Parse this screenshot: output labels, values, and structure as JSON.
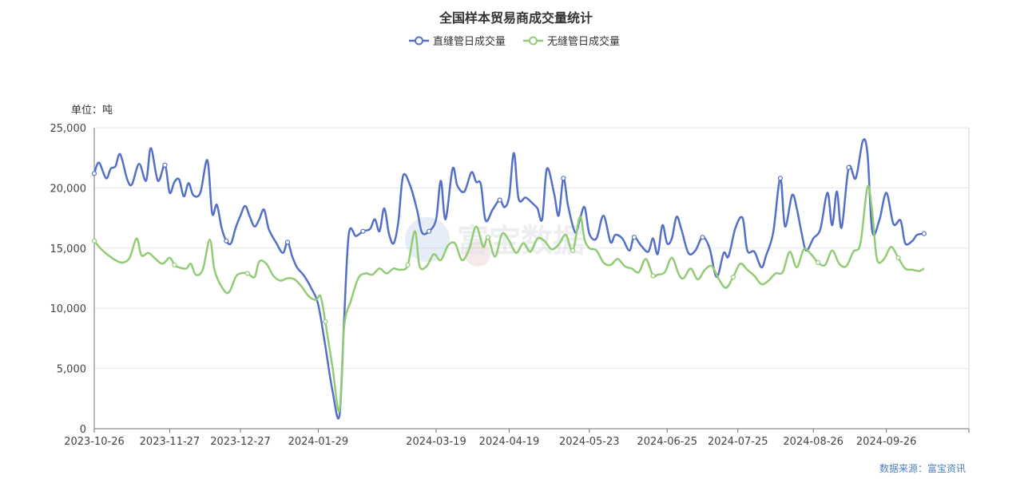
{
  "chart_data": {
    "type": "line",
    "title": "全国样本贸易商成交量统计",
    "unit_label": "单位：吨",
    "source": "数据来源：富宝资讯",
    "watermark": "富宝数据",
    "ylim": [
      0,
      25000
    ],
    "yticks": [
      0,
      5000,
      10000,
      15000,
      20000,
      25000
    ],
    "ytick_labels": [
      "0",
      "5,000",
      "10,000",
      "15,000",
      "20,000",
      "25,000"
    ],
    "xlim": [
      "2023-10-26",
      "2024-10-31"
    ],
    "xtick_labels": [
      "2023-10-26",
      "2023-11-27",
      "2023-12-27",
      "2024-01-29",
      "2024-03-19",
      "2024-04-19",
      "2024-05-23",
      "2024-06-25",
      "2024-07-25",
      "2024-08-26",
      "2024-09-26"
    ],
    "grid": true,
    "legend_position": "top-center",
    "series": [
      {
        "name": "直缝管日成交量",
        "color": "#5470c6",
        "points": [
          [
            "2023-10-26",
            21200
          ],
          [
            "2023-10-28",
            22100
          ],
          [
            "2023-10-31",
            20800
          ],
          [
            "2023-11-02",
            21600
          ],
          [
            "2023-11-04",
            21800
          ],
          [
            "2023-11-06",
            22800
          ],
          [
            "2023-11-09",
            20700
          ],
          [
            "2023-11-11",
            20300
          ],
          [
            "2023-11-14",
            22000
          ],
          [
            "2023-11-17",
            20600
          ],
          [
            "2023-11-19",
            23300
          ],
          [
            "2023-11-22",
            20600
          ],
          [
            "2023-11-25",
            21900
          ],
          [
            "2023-11-27",
            19600
          ],
          [
            "2023-11-29",
            20500
          ],
          [
            "2023-12-01",
            20700
          ],
          [
            "2023-12-03",
            19300
          ],
          [
            "2023-12-05",
            20400
          ],
          [
            "2023-12-07",
            19400
          ],
          [
            "2023-12-10",
            19600
          ],
          [
            "2023-12-13",
            22300
          ],
          [
            "2023-12-15",
            17900
          ],
          [
            "2023-12-17",
            18600
          ],
          [
            "2023-12-19",
            16700
          ],
          [
            "2023-12-21",
            15600
          ],
          [
            "2023-12-23",
            15400
          ],
          [
            "2023-12-25",
            16700
          ],
          [
            "2023-12-27",
            17700
          ],
          [
            "2023-12-29",
            18500
          ],
          [
            "2023-12-31",
            17600
          ],
          [
            "2024-01-02",
            16800
          ],
          [
            "2024-01-04",
            17400
          ],
          [
            "2024-01-06",
            18200
          ],
          [
            "2024-01-08",
            16600
          ],
          [
            "2024-01-11",
            15500
          ],
          [
            "2024-01-14",
            14600
          ],
          [
            "2024-01-16",
            15500
          ],
          [
            "2024-01-18",
            14300
          ],
          [
            "2024-01-20",
            13400
          ],
          [
            "2024-01-23",
            12700
          ],
          [
            "2024-01-26",
            11700
          ],
          [
            "2024-01-29",
            10300
          ],
          [
            "2024-02-01",
            6900
          ],
          [
            "2024-02-04",
            3200
          ],
          [
            "2024-02-07",
            1100
          ],
          [
            "2024-02-09",
            9200
          ],
          [
            "2024-02-11",
            16200
          ],
          [
            "2024-02-14",
            16000
          ],
          [
            "2024-02-17",
            16400
          ],
          [
            "2024-02-20",
            16600
          ],
          [
            "2024-02-22",
            17400
          ],
          [
            "2024-02-24",
            16400
          ],
          [
            "2024-02-26",
            18300
          ],
          [
            "2024-02-28",
            16200
          ],
          [
            "2024-03-01",
            15400
          ],
          [
            "2024-03-03",
            17200
          ],
          [
            "2024-03-05",
            21000
          ],
          [
            "2024-03-08",
            20200
          ],
          [
            "2024-03-11",
            18100
          ],
          [
            "2024-03-13",
            16300
          ],
          [
            "2024-03-16",
            16400
          ],
          [
            "2024-03-19",
            17400
          ],
          [
            "2024-03-21",
            20600
          ],
          [
            "2024-03-23",
            17400
          ],
          [
            "2024-03-26",
            21600
          ],
          [
            "2024-03-28",
            20200
          ],
          [
            "2024-03-31",
            19700
          ],
          [
            "2024-04-03",
            21300
          ],
          [
            "2024-04-05",
            20500
          ],
          [
            "2024-04-07",
            20300
          ],
          [
            "2024-04-09",
            17300
          ],
          [
            "2024-04-12",
            18200
          ],
          [
            "2024-04-15",
            19000
          ],
          [
            "2024-04-17",
            18400
          ],
          [
            "2024-04-19",
            19300
          ],
          [
            "2024-04-21",
            22900
          ],
          [
            "2024-04-23",
            19100
          ],
          [
            "2024-04-26",
            19200
          ],
          [
            "2024-04-29",
            18700
          ],
          [
            "2024-05-01",
            18300
          ],
          [
            "2024-05-03",
            17400
          ],
          [
            "2024-05-05",
            21600
          ],
          [
            "2024-05-08",
            19600
          ],
          [
            "2024-05-10",
            17700
          ],
          [
            "2024-05-12",
            20800
          ],
          [
            "2024-05-14",
            18500
          ],
          [
            "2024-05-17",
            16300
          ],
          [
            "2024-05-19",
            17400
          ],
          [
            "2024-05-21",
            18400
          ],
          [
            "2024-05-23",
            16200
          ],
          [
            "2024-05-26",
            15800
          ],
          [
            "2024-05-29",
            17700
          ],
          [
            "2024-06-01",
            15500
          ],
          [
            "2024-06-03",
            16100
          ],
          [
            "2024-06-06",
            15800
          ],
          [
            "2024-06-09",
            14800
          ],
          [
            "2024-06-11",
            15900
          ],
          [
            "2024-06-14",
            15200
          ],
          [
            "2024-06-17",
            14700
          ],
          [
            "2024-06-19",
            15800
          ],
          [
            "2024-06-21",
            14500
          ],
          [
            "2024-06-23",
            16900
          ],
          [
            "2024-06-25",
            15400
          ],
          [
            "2024-06-27",
            15800
          ],
          [
            "2024-06-29",
            17600
          ],
          [
            "2024-07-01",
            16600
          ],
          [
            "2024-07-04",
            14600
          ],
          [
            "2024-07-07",
            14800
          ],
          [
            "2024-07-10",
            15900
          ],
          [
            "2024-07-13",
            15000
          ],
          [
            "2024-07-16",
            12600
          ],
          [
            "2024-07-19",
            14600
          ],
          [
            "2024-07-21",
            14300
          ],
          [
            "2024-07-24",
            16700
          ],
          [
            "2024-07-27",
            17500
          ],
          [
            "2024-07-29",
            14800
          ],
          [
            "2024-08-01",
            14700
          ],
          [
            "2024-08-04",
            13400
          ],
          [
            "2024-08-06",
            14400
          ],
          [
            "2024-08-09",
            16300
          ],
          [
            "2024-08-12",
            20800
          ],
          [
            "2024-08-14",
            16800
          ],
          [
            "2024-08-17",
            19400
          ],
          [
            "2024-08-19",
            18300
          ],
          [
            "2024-08-21",
            16300
          ],
          [
            "2024-08-23",
            14800
          ],
          [
            "2024-08-26",
            15800
          ],
          [
            "2024-08-29",
            16600
          ],
          [
            "2024-09-01",
            19600
          ],
          [
            "2024-09-03",
            16900
          ],
          [
            "2024-09-05",
            19700
          ],
          [
            "2024-09-07",
            16700
          ],
          [
            "2024-09-10",
            21700
          ],
          [
            "2024-09-13",
            20800
          ],
          [
            "2024-09-16",
            23900
          ],
          [
            "2024-09-18",
            22800
          ],
          [
            "2024-09-20",
            16400
          ],
          [
            "2024-09-23",
            17300
          ],
          [
            "2024-09-26",
            19600
          ],
          [
            "2024-09-29",
            17000
          ],
          [
            "2024-10-02",
            17300
          ],
          [
            "2024-10-04",
            15400
          ],
          [
            "2024-10-07",
            15600
          ],
          [
            "2024-10-09",
            16100
          ],
          [
            "2024-10-12",
            16200
          ]
        ]
      },
      {
        "name": "无缝管日成交量",
        "color": "#91cc75",
        "points": [
          [
            "2023-10-26",
            15600
          ],
          [
            "2023-10-29",
            14900
          ],
          [
            "2023-11-01",
            14400
          ],
          [
            "2023-11-04",
            14000
          ],
          [
            "2023-11-07",
            13800
          ],
          [
            "2023-11-10",
            14200
          ],
          [
            "2023-11-13",
            15800
          ],
          [
            "2023-11-15",
            14400
          ],
          [
            "2023-11-18",
            14600
          ],
          [
            "2023-11-21",
            14100
          ],
          [
            "2023-11-24",
            13700
          ],
          [
            "2023-11-27",
            14200
          ],
          [
            "2023-11-29",
            13600
          ],
          [
            "2023-12-01",
            13400
          ],
          [
            "2023-12-04",
            13300
          ],
          [
            "2023-12-06",
            13700
          ],
          [
            "2023-12-08",
            12800
          ],
          [
            "2023-12-11",
            13200
          ],
          [
            "2023-12-14",
            15700
          ],
          [
            "2023-12-16",
            13200
          ],
          [
            "2023-12-19",
            11800
          ],
          [
            "2023-12-22",
            11300
          ],
          [
            "2023-12-25",
            12600
          ],
          [
            "2023-12-27",
            12900
          ],
          [
            "2023-12-30",
            12900
          ],
          [
            "2024-01-02",
            12600
          ],
          [
            "2024-01-04",
            13900
          ],
          [
            "2024-01-07",
            13700
          ],
          [
            "2024-01-10",
            12700
          ],
          [
            "2024-01-13",
            12300
          ],
          [
            "2024-01-16",
            12500
          ],
          [
            "2024-01-19",
            12400
          ],
          [
            "2024-01-22",
            11800
          ],
          [
            "2024-01-25",
            11000
          ],
          [
            "2024-01-28",
            10700
          ],
          [
            "2024-01-30",
            11000
          ],
          [
            "2024-02-01",
            8900
          ],
          [
            "2024-02-04",
            5200
          ],
          [
            "2024-02-07",
            1500
          ],
          [
            "2024-02-09",
            8500
          ],
          [
            "2024-02-12",
            10700
          ],
          [
            "2024-02-15",
            12500
          ],
          [
            "2024-02-18",
            12900
          ],
          [
            "2024-02-21",
            12800
          ],
          [
            "2024-02-24",
            13300
          ],
          [
            "2024-02-27",
            12900
          ],
          [
            "2024-03-01",
            13300
          ],
          [
            "2024-03-04",
            13200
          ],
          [
            "2024-03-07",
            13600
          ],
          [
            "2024-03-10",
            16400
          ],
          [
            "2024-03-12",
            13500
          ],
          [
            "2024-03-15",
            13500
          ],
          [
            "2024-03-18",
            14500
          ],
          [
            "2024-03-21",
            14000
          ],
          [
            "2024-03-24",
            15200
          ],
          [
            "2024-03-27",
            15400
          ],
          [
            "2024-03-30",
            14000
          ],
          [
            "2024-04-02",
            14900
          ],
          [
            "2024-04-05",
            16800
          ],
          [
            "2024-04-08",
            15100
          ],
          [
            "2024-04-10",
            15900
          ],
          [
            "2024-04-13",
            14300
          ],
          [
            "2024-04-16",
            16200
          ],
          [
            "2024-04-19",
            15600
          ],
          [
            "2024-04-22",
            14600
          ],
          [
            "2024-04-25",
            15400
          ],
          [
            "2024-04-28",
            14700
          ],
          [
            "2024-05-01",
            15800
          ],
          [
            "2024-05-04",
            15600
          ],
          [
            "2024-05-07",
            14900
          ],
          [
            "2024-05-10",
            15300
          ],
          [
            "2024-05-13",
            16100
          ],
          [
            "2024-05-16",
            14800
          ],
          [
            "2024-05-19",
            17600
          ],
          [
            "2024-05-21",
            15700
          ],
          [
            "2024-05-23",
            15000
          ],
          [
            "2024-05-26",
            14800
          ],
          [
            "2024-05-29",
            13800
          ],
          [
            "2024-06-01",
            13600
          ],
          [
            "2024-06-04",
            14100
          ],
          [
            "2024-06-07",
            13500
          ],
          [
            "2024-06-10",
            13300
          ],
          [
            "2024-06-13",
            13000
          ],
          [
            "2024-06-16",
            14100
          ],
          [
            "2024-06-19",
            12700
          ],
          [
            "2024-06-21",
            12800
          ],
          [
            "2024-06-24",
            13000
          ],
          [
            "2024-06-27",
            14200
          ],
          [
            "2024-06-30",
            12800
          ],
          [
            "2024-07-02",
            12500
          ],
          [
            "2024-07-05",
            13300
          ],
          [
            "2024-07-08",
            12400
          ],
          [
            "2024-07-11",
            13200
          ],
          [
            "2024-07-14",
            13500
          ],
          [
            "2024-07-17",
            12400
          ],
          [
            "2024-07-20",
            11700
          ],
          [
            "2024-07-23",
            12600
          ],
          [
            "2024-07-26",
            13700
          ],
          [
            "2024-07-29",
            13200
          ],
          [
            "2024-08-01",
            12700
          ],
          [
            "2024-08-04",
            12000
          ],
          [
            "2024-08-07",
            12300
          ],
          [
            "2024-08-10",
            12900
          ],
          [
            "2024-08-13",
            13000
          ],
          [
            "2024-08-16",
            14700
          ],
          [
            "2024-08-19",
            13400
          ],
          [
            "2024-08-22",
            14900
          ],
          [
            "2024-08-25",
            14500
          ],
          [
            "2024-08-28",
            13800
          ],
          [
            "2024-08-31",
            13600
          ],
          [
            "2024-09-03",
            14800
          ],
          [
            "2024-09-06",
            13700
          ],
          [
            "2024-09-09",
            13500
          ],
          [
            "2024-09-12",
            14700
          ],
          [
            "2024-09-15",
            15400
          ],
          [
            "2024-09-18",
            20100
          ],
          [
            "2024-09-20",
            18000
          ],
          [
            "2024-09-22",
            14100
          ],
          [
            "2024-09-25",
            14100
          ],
          [
            "2024-09-28",
            15100
          ],
          [
            "2024-10-01",
            14200
          ],
          [
            "2024-10-04",
            13300
          ],
          [
            "2024-10-07",
            13200
          ],
          [
            "2024-10-10",
            13100
          ],
          [
            "2024-10-12",
            13300
          ]
        ]
      }
    ]
  }
}
